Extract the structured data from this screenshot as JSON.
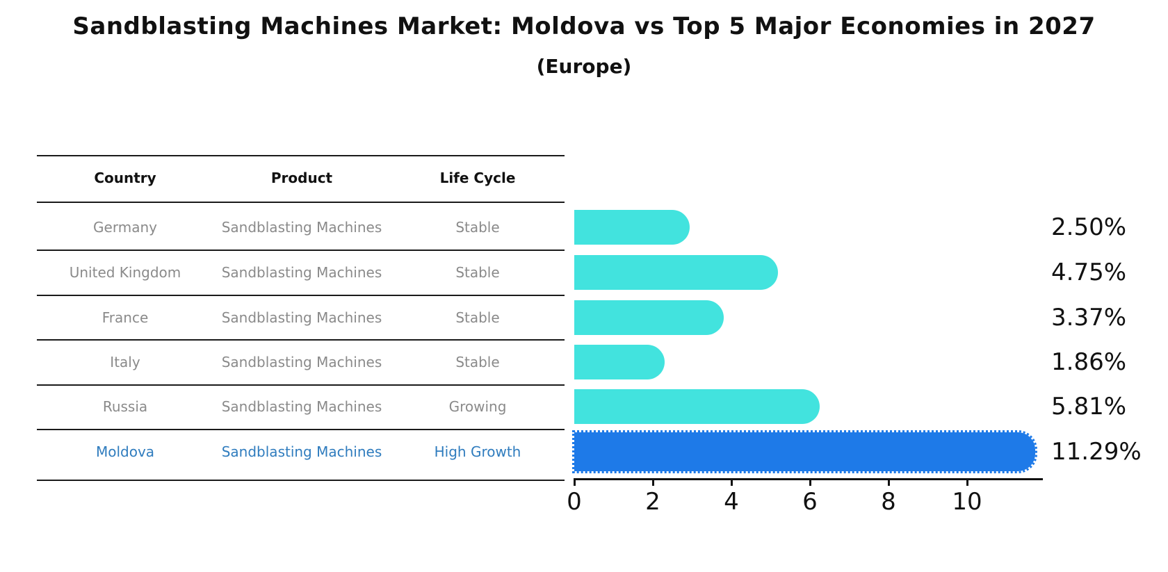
{
  "title": "Sandblasting Machines Market: Moldova vs Top 5 Major Economies in 2027",
  "subtitle": "(Europe)",
  "table": {
    "headers": [
      "Country",
      "Product",
      "Life Cycle"
    ],
    "rows": [
      {
        "country": "Germany",
        "product": "Sandblasting Machines",
        "life_cycle": "Stable",
        "highlight": false
      },
      {
        "country": "United Kingdom",
        "product": "Sandblasting Machines",
        "life_cycle": "Stable",
        "highlight": false
      },
      {
        "country": "France",
        "product": "Sandblasting Machines",
        "life_cycle": "Stable",
        "highlight": false
      },
      {
        "country": "Italy",
        "product": "Sandblasting Machines",
        "life_cycle": "Stable",
        "highlight": false
      },
      {
        "country": "Russia",
        "product": "Sandblasting Machines",
        "life_cycle": "Growing",
        "highlight": false
      },
      {
        "country": "Moldova",
        "product": "Sandblasting Machines",
        "life_cycle": "High Growth",
        "highlight": true
      }
    ]
  },
  "chart_data": {
    "type": "bar",
    "orientation": "horizontal",
    "title": "Sandblasting Machines Market: Moldova vs Top 5 Major Economies in 2027",
    "subtitle": "(Europe)",
    "categories": [
      "Germany",
      "United Kingdom",
      "France",
      "Italy",
      "Russia",
      "Moldova"
    ],
    "values": [
      2.5,
      4.75,
      3.37,
      1.86,
      5.81,
      11.29
    ],
    "value_labels": [
      "2.50%",
      "4.75%",
      "3.37%",
      "1.86%",
      "5.81%",
      "11.29%"
    ],
    "xlabel": "",
    "ylabel": "",
    "xlim": [
      0,
      11.9
    ],
    "xticks": [
      "0",
      "2",
      "4",
      "6",
      "8",
      "10"
    ],
    "grid": false,
    "legend": false,
    "highlight_index": 5,
    "highlight_style": "dotted-border"
  },
  "colors": {
    "bar_cyan": "#42e3de",
    "bar_blue": "#1e7ae8",
    "highlight_text_blue": "#2f7cbe",
    "cell_gray": "#8a8a8a",
    "header_black": "#111111",
    "line_black": "#1a1a1a"
  }
}
